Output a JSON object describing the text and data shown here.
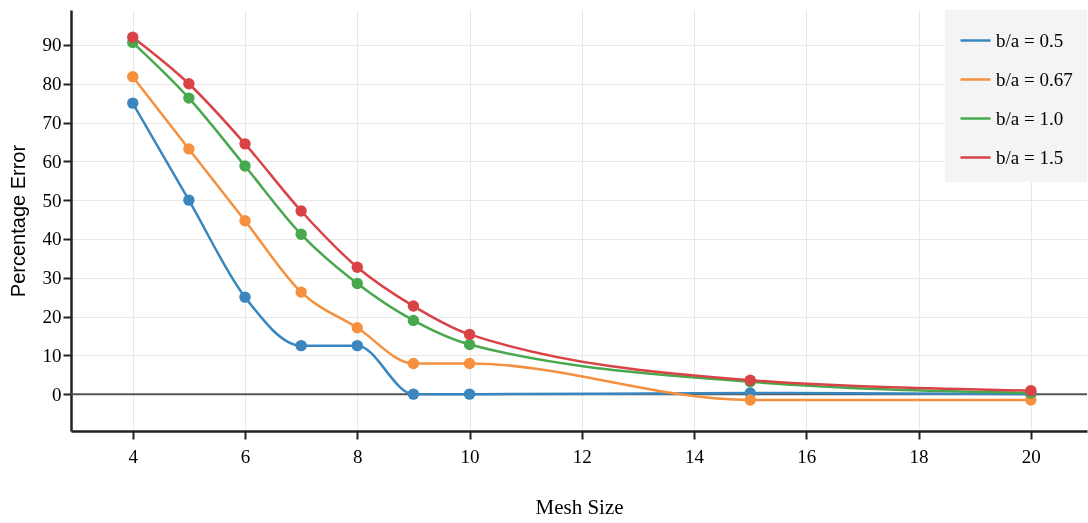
{
  "chart_data": {
    "type": "line",
    "xlabel": "Mesh Size",
    "ylabel": "Percentage Error",
    "x": [
      4,
      5,
      6,
      7,
      8,
      9,
      10,
      15,
      20
    ],
    "series": [
      {
        "name": "b/a = 0.5",
        "color": "#3a87c0",
        "values": [
          75,
          50,
          25,
          12.5,
          12.5,
          0,
          0,
          0.3,
          0
        ]
      },
      {
        "name": "b/a = 0.67",
        "color": "#f5913e",
        "values": [
          81.8,
          63.2,
          44.7,
          26.3,
          17.1,
          7.9,
          7.9,
          -1.5,
          -1.5
        ]
      },
      {
        "name": "b/a = 1.0",
        "color": "#47a84e",
        "values": [
          90.6,
          76.3,
          58.8,
          41.2,
          28.5,
          19,
          12.8,
          3.2,
          0.3
        ]
      },
      {
        "name": "b/a = 1.5",
        "color": "#d94346",
        "values": [
          92,
          80,
          64.5,
          47.2,
          32.7,
          22.7,
          15.4,
          3.6,
          0.9
        ]
      }
    ],
    "xlim": [
      2.9,
      21
    ],
    "xticks": [
      4,
      6,
      8,
      10,
      12,
      14,
      16,
      18,
      20
    ],
    "ylim": [
      -9.5,
      99
    ],
    "yticks": [
      0,
      10,
      20,
      30,
      40,
      50,
      60,
      70,
      80,
      90
    ],
    "ref_lines": [
      {
        "axis": "y",
        "value": 0,
        "color": "#555555"
      }
    ],
    "grid": true,
    "legend": "top right",
    "marker": "circle",
    "line_style": "solid"
  }
}
